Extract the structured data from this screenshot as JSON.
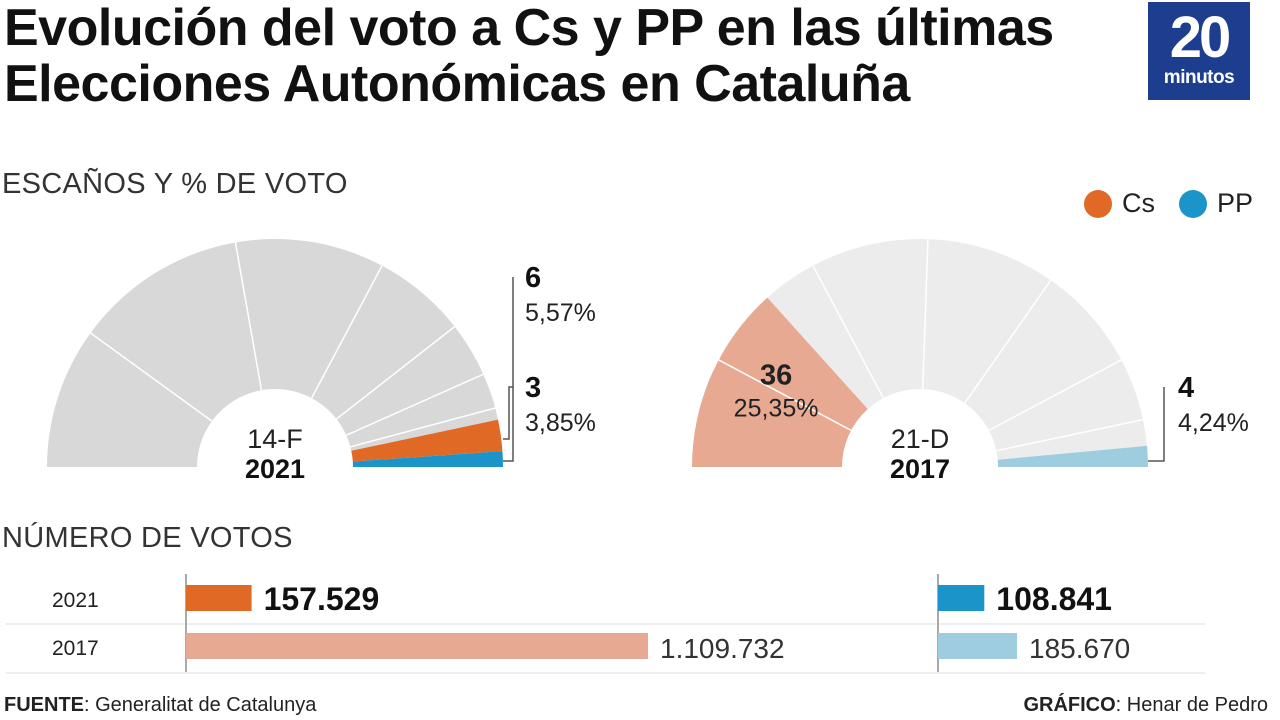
{
  "header": {
    "title_line1": "Evolución del voto a Cs y PP en las últimas",
    "title_line2": "Elecciones Autonómicas en Cataluña",
    "logo_number": "20",
    "logo_word": "minutos"
  },
  "sections": {
    "seats": "ESCAÑOS Y % DE VOTO",
    "votes": "NÚMERO DE VOTOS"
  },
  "legend": [
    {
      "label": "Cs",
      "color": "#e06a25"
    },
    {
      "label": "PP",
      "color": "#1b94c9"
    }
  ],
  "footer": {
    "source_label": "FUENTE",
    "source_value": ": Generalitat de Catalunya",
    "credit_label": "GRÁFICO",
    "credit_value": ": Henar de Pedro"
  },
  "chart_data": [
    {
      "type": "pie",
      "subtype": "semicircle-parliament",
      "title": "14-F 2021",
      "center_top": "14-F",
      "center_bottom": "2021",
      "total_seats": 135,
      "series": [
        {
          "name": "Cs",
          "seats": 6,
          "seats_label": "6",
          "vote_pct_label": "5,57%",
          "color": "#e06a25"
        },
        {
          "name": "PP",
          "seats": 3,
          "seats_label": "3",
          "vote_pct_label": "3,85%",
          "color": "#1b94c9"
        }
      ]
    },
    {
      "type": "pie",
      "subtype": "semicircle-parliament",
      "title": "21-D 2017",
      "center_top": "21-D",
      "center_bottom": "2017",
      "total_seats": 135,
      "series": [
        {
          "name": "Cs",
          "seats": 36,
          "seats_label": "36",
          "vote_pct_label": "25,35%",
          "color": "#e8a993"
        },
        {
          "name": "PP",
          "seats": 4,
          "seats_label": "4",
          "vote_pct_label": "4,24%",
          "color": "#9fcde0"
        }
      ]
    },
    {
      "type": "bar",
      "orientation": "horizontal",
      "title": "NÚMERO DE VOTOS",
      "categories": [
        "2021",
        "2017"
      ],
      "series": [
        {
          "name": "Cs",
          "values": [
            157529,
            1109732
          ],
          "labels": [
            "157.529",
            "1.109.732"
          ],
          "colors": [
            "#e06a25",
            "#e8a993"
          ]
        },
        {
          "name": "PP",
          "values": [
            108841,
            185670
          ],
          "labels": [
            "108.841",
            "185.670"
          ],
          "colors": [
            "#1b94c9",
            "#9fcde0"
          ]
        }
      ]
    }
  ]
}
